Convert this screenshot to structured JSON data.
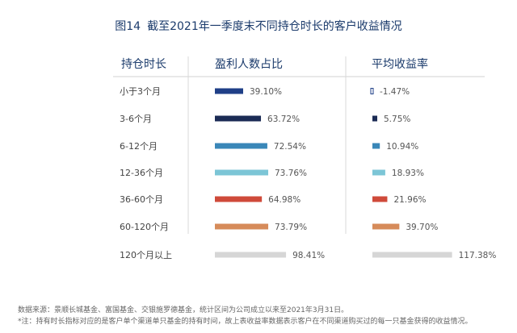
{
  "figure": {
    "number": "图14",
    "title": "截至2021年一季度末不同持仓时长的客户收益情况"
  },
  "column_headers": {
    "holding": "持仓时长",
    "profit_ratio": "盈利人数占比",
    "avg_return": "平均收益率"
  },
  "chart_data": {
    "type": "bar",
    "categories": [
      "小于3个月",
      "3-6个月",
      "6-12个月",
      "12-36个月",
      "36-60个月",
      "60-120个月",
      "120个月以上"
    ],
    "series": [
      {
        "name": "盈利人数占比",
        "values": [
          39.1,
          63.72,
          72.54,
          73.76,
          64.98,
          73.79,
          98.41
        ],
        "labels": [
          "39.10%",
          "63.72%",
          "72.54%",
          "73.76%",
          "64.98%",
          "73.79%",
          "98.41%"
        ]
      },
      {
        "name": "平均收益率",
        "values": [
          -1.47,
          5.75,
          10.94,
          18.93,
          21.96,
          39.7,
          117.38
        ],
        "labels": [
          "-1.47%",
          "5.75%",
          "10.94%",
          "18.93%",
          "21.96%",
          "39.70%",
          "117.38%"
        ]
      }
    ],
    "colors": [
      "#1f3f87",
      "#1b2b55",
      "#3a87b8",
      "#7cc5d6",
      "#cf4a3a",
      "#d68b5a",
      "#d6d6d6"
    ]
  },
  "footnotes": {
    "source": "数据来源：景顺长城基金、富国基金、交银施罗德基金，统计区间为公司成立以来至2021年3月31日。",
    "note": "*注：持有时长指标对应的是客户单个渠道单只基金的持有时间，故上表收益率数据表示客户在不同渠道购买过的每一只基金获得的收益情况。"
  }
}
